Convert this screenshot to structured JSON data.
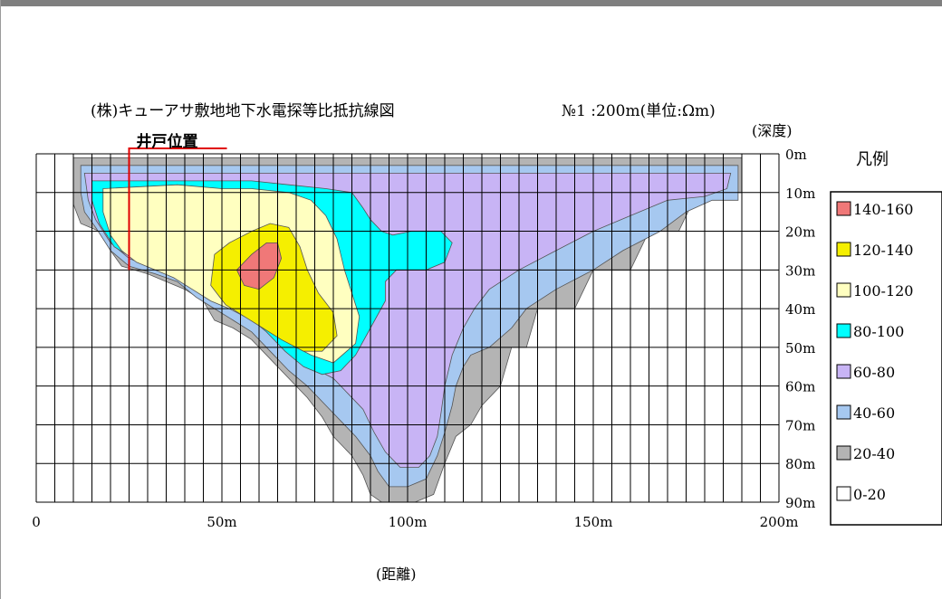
{
  "chart_data": {
    "type": "heatmap",
    "title": "(株)キューアサ敷地地下水電探等比抵抗線図",
    "subtitle": "№1 :200m(単位:Ωm)",
    "xlabel": "(距離)",
    "ylabel": "(深度)",
    "xlim": [
      0,
      200
    ],
    "ylim": [
      0,
      90
    ],
    "x_ticks": [
      "0",
      "50m",
      "100m",
      "150m",
      "200m"
    ],
    "y_ticks": [
      "0m",
      "10m",
      "20m",
      "30m",
      "40m",
      "50m",
      "60m",
      "70m",
      "80m",
      "90m"
    ],
    "well_label": "井戸位置",
    "well_x": 25,
    "legend_title": "凡例",
    "legend": [
      {
        "label": "140-160",
        "color": "#f07878"
      },
      {
        "label": "120-140",
        "color": "#f5ef00"
      },
      {
        "label": "100-120",
        "color": "#ffffc0"
      },
      {
        "label": "80-100",
        "color": "#00ffff"
      },
      {
        "label": "60-80",
        "color": "#c8b4f5"
      },
      {
        "label": "40-60",
        "color": "#a6c8f0"
      },
      {
        "label": "20-40",
        "color": "#b4b4b4"
      },
      {
        "label": "0-20",
        "color": "#ffffff"
      }
    ],
    "regions": [
      {
        "range": "20-40",
        "points": [
          [
            10,
            1
          ],
          [
            190,
            1
          ],
          [
            190,
            10
          ],
          [
            178,
            10
          ],
          [
            173,
            20
          ],
          [
            165,
            20
          ],
          [
            160,
            30
          ],
          [
            150,
            30
          ],
          [
            145,
            40
          ],
          [
            135,
            40
          ],
          [
            132,
            50
          ],
          [
            128,
            50
          ],
          [
            125,
            60
          ],
          [
            120,
            65
          ],
          [
            117,
            70
          ],
          [
            113,
            73
          ],
          [
            110,
            80
          ],
          [
            107,
            88
          ],
          [
            102,
            90
          ],
          [
            93,
            90
          ],
          [
            90,
            88
          ],
          [
            88,
            83
          ],
          [
            85,
            78
          ],
          [
            80,
            73
          ],
          [
            77,
            68
          ],
          [
            73,
            63
          ],
          [
            68,
            58
          ],
          [
            63,
            53
          ],
          [
            58,
            48
          ],
          [
            53,
            45
          ],
          [
            48,
            43
          ],
          [
            45,
            38
          ],
          [
            40,
            35
          ],
          [
            35,
            33
          ],
          [
            30,
            31
          ],
          [
            23,
            29
          ],
          [
            20,
            25
          ],
          [
            17,
            20
          ],
          [
            12,
            18
          ],
          [
            10,
            13
          ]
        ]
      },
      {
        "range": "40-60",
        "points": [
          [
            12,
            3
          ],
          [
            189,
            3
          ],
          [
            189,
            12
          ],
          [
            182,
            12
          ],
          [
            175,
            15
          ],
          [
            168,
            20
          ],
          [
            158,
            25
          ],
          [
            150,
            30
          ],
          [
            140,
            35
          ],
          [
            132,
            40
          ],
          [
            128,
            45
          ],
          [
            122,
            50
          ],
          [
            117,
            52
          ],
          [
            115,
            55
          ],
          [
            113,
            60
          ],
          [
            112,
            65
          ],
          [
            110,
            72
          ],
          [
            108,
            78
          ],
          [
            105,
            84
          ],
          [
            100,
            86
          ],
          [
            95,
            86
          ],
          [
            92,
            82
          ],
          [
            90,
            78
          ],
          [
            86,
            73
          ],
          [
            82,
            69
          ],
          [
            78,
            65
          ],
          [
            73,
            60
          ],
          [
            68,
            56
          ],
          [
            63,
            51
          ],
          [
            58,
            46
          ],
          [
            53,
            43
          ],
          [
            48,
            40
          ],
          [
            43,
            37
          ],
          [
            38,
            33
          ],
          [
            32,
            31
          ],
          [
            25,
            29
          ],
          [
            20,
            25
          ],
          [
            16,
            19
          ],
          [
            13,
            15
          ],
          [
            12,
            10
          ]
        ]
      },
      {
        "range": "60-80",
        "points": [
          [
            13,
            5
          ],
          [
            187,
            5
          ],
          [
            186,
            9
          ],
          [
            180,
            11
          ],
          [
            170,
            12
          ],
          [
            160,
            16
          ],
          [
            150,
            20
          ],
          [
            140,
            25
          ],
          [
            130,
            30
          ],
          [
            122,
            35
          ],
          [
            118,
            40
          ],
          [
            115,
            45
          ],
          [
            112,
            52
          ],
          [
            110,
            60
          ],
          [
            109,
            67
          ],
          [
            108,
            73
          ],
          [
            106,
            78
          ],
          [
            103,
            81
          ],
          [
            98,
            81
          ],
          [
            94,
            77
          ],
          [
            91,
            72
          ],
          [
            88,
            66
          ],
          [
            84,
            62
          ],
          [
            80,
            58
          ],
          [
            76,
            56
          ],
          [
            71,
            53
          ],
          [
            66,
            49
          ],
          [
            61,
            45
          ],
          [
            56,
            41
          ],
          [
            51,
            38
          ],
          [
            46,
            36
          ],
          [
            41,
            33
          ],
          [
            36,
            30
          ],
          [
            30,
            29
          ],
          [
            25,
            27
          ],
          [
            20,
            23
          ],
          [
            16,
            17
          ],
          [
            14,
            12
          ]
        ]
      },
      {
        "range": "80-100",
        "points": [
          [
            15,
            7
          ],
          [
            35,
            7
          ],
          [
            50,
            7
          ],
          [
            58,
            7
          ],
          [
            68,
            8
          ],
          [
            78,
            9
          ],
          [
            85,
            10
          ],
          [
            88,
            14
          ],
          [
            90,
            17
          ],
          [
            93,
            20
          ],
          [
            96,
            21
          ],
          [
            101,
            20
          ],
          [
            104,
            20
          ],
          [
            109,
            20
          ],
          [
            112,
            23
          ],
          [
            110,
            28
          ],
          [
            105,
            30
          ],
          [
            97,
            30
          ],
          [
            94,
            33
          ],
          [
            94,
            38
          ],
          [
            90,
            45
          ],
          [
            86,
            52
          ],
          [
            82,
            56
          ],
          [
            77,
            57
          ],
          [
            72,
            55
          ],
          [
            67,
            51
          ],
          [
            62,
            46
          ],
          [
            57,
            42
          ],
          [
            52,
            39
          ],
          [
            47,
            37
          ],
          [
            42,
            34
          ],
          [
            37,
            31
          ],
          [
            31,
            29
          ],
          [
            26,
            27
          ],
          [
            21,
            24
          ],
          [
            17,
            18
          ],
          [
            15,
            12
          ]
        ]
      },
      {
        "range": "100-120",
        "points": [
          [
            18,
            9
          ],
          [
            38,
            8
          ],
          [
            50,
            9
          ],
          [
            58,
            9
          ],
          [
            68,
            10
          ],
          [
            74,
            12
          ],
          [
            78,
            16
          ],
          [
            81,
            22
          ],
          [
            83,
            30
          ],
          [
            85,
            36
          ],
          [
            87,
            42
          ],
          [
            86,
            49
          ],
          [
            80,
            54
          ],
          [
            74,
            52
          ],
          [
            70,
            50
          ],
          [
            64,
            46
          ],
          [
            58,
            43
          ],
          [
            52,
            40
          ],
          [
            47,
            38
          ],
          [
            42,
            35
          ],
          [
            37,
            32
          ],
          [
            32,
            30
          ],
          [
            27,
            28
          ],
          [
            23,
            25
          ],
          [
            20,
            21
          ],
          [
            18,
            15
          ]
        ]
      },
      {
        "range": "120-140",
        "points": [
          [
            48,
            26
          ],
          [
            52,
            23
          ],
          [
            58,
            20
          ],
          [
            63,
            18
          ],
          [
            68,
            19
          ],
          [
            71,
            24
          ],
          [
            73,
            30
          ],
          [
            76,
            36
          ],
          [
            80,
            41
          ],
          [
            81,
            47
          ],
          [
            77,
            51
          ],
          [
            72,
            51
          ],
          [
            66,
            48
          ],
          [
            61,
            45
          ],
          [
            56,
            42
          ],
          [
            51,
            39
          ],
          [
            47,
            34
          ]
        ]
      },
      {
        "range": "140-160",
        "points": [
          [
            54,
            30
          ],
          [
            58,
            26
          ],
          [
            62,
            23
          ],
          [
            65,
            23
          ],
          [
            66,
            27
          ],
          [
            64,
            32
          ],
          [
            60,
            35
          ],
          [
            56,
            34
          ]
        ]
      }
    ]
  }
}
